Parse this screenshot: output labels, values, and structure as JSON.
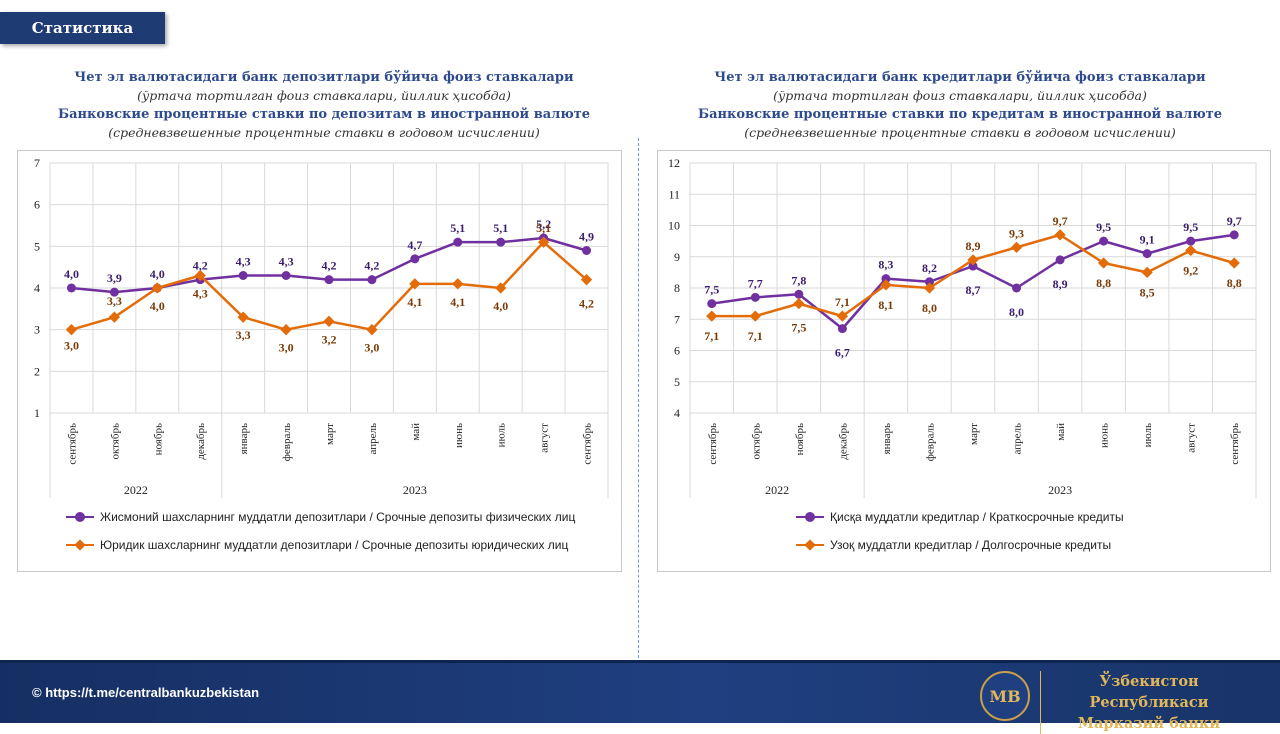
{
  "header": {
    "section_label": "Статистика"
  },
  "left": {
    "title_uz": "Чет эл валютасидаги банк депозитлари бўйича фоиз ставкалари",
    "subtitle_uz": "(ўртача тортилган фоиз ставкалари, йиллик ҳисобда)",
    "title_ru": "Банковские процентные ставки по депозитам в иностранной валюте",
    "subtitle_ru": "(средневзвешенные процентные ставки в годовом исчислении)"
  },
  "right": {
    "title_uz": "Чет эл валютасидаги банк кредитлари бўйича фоиз ставкалари",
    "subtitle_uz": "(ўртача тортилган фоиз ставкалари, йиллик ҳисобда)",
    "title_ru": "Банковские процентные ставки по кредитам в иностранной валюте",
    "subtitle_ru": "(средневзвешенные процентные ставки в годовом исчислении)"
  },
  "chart_data": [
    {
      "type": "line",
      "categories": [
        "сентябрь",
        "октябрь",
        "ноябрь",
        "декабрь",
        "январь",
        "февраль",
        "март",
        "апрель",
        "май",
        "июнь",
        "июль",
        "август",
        "сентябрь"
      ],
      "year_groups": [
        {
          "label": "2022",
          "start": 0,
          "end": 3
        },
        {
          "label": "2023",
          "start": 4,
          "end": 12
        }
      ],
      "ylim": [
        1,
        7
      ],
      "yticks": [
        1,
        2,
        3,
        4,
        5,
        6,
        7
      ],
      "grid": true,
      "legend_position": "bottom",
      "series": [
        {
          "name": "Жисмоний шахсларнинг муддатли депозитлари / Срочные депозиты физических лиц",
          "color": "#7030a0",
          "marker": "circle",
          "values": [
            4.0,
            3.9,
            4.0,
            4.2,
            4.3,
            4.3,
            4.2,
            4.2,
            4.7,
            5.1,
            5.1,
            5.2,
            4.9
          ],
          "labels": [
            "4,0",
            "3,9",
            "4,0",
            "4,2",
            "4,3",
            "4,3",
            "4,2",
            "4,2",
            "4,7",
            "5,1",
            "5,1",
            "5,2",
            "4,9"
          ]
        },
        {
          "name": "Юридик шахсларнинг муддатли депозитлари / Срочные депозиты юридических лиц",
          "color": "#e36c09",
          "marker": "diamond",
          "values": [
            3.0,
            3.3,
            4.0,
            4.3,
            3.3,
            3.0,
            3.2,
            3.0,
            4.1,
            4.1,
            4.0,
            5.1,
            4.2
          ],
          "labels": [
            "3,0",
            "3,3",
            "4,0",
            "4,3",
            "3,3",
            "3,0",
            "3,2",
            "3,0",
            "4,1",
            "4,1",
            "4,0",
            "5,1",
            "4,2"
          ]
        }
      ]
    },
    {
      "type": "line",
      "categories": [
        "сентябрь",
        "октябрь",
        "ноябрь",
        "декабрь",
        "январь",
        "февраль",
        "март",
        "апрель",
        "май",
        "июнь",
        "июль",
        "август",
        "сентябрь"
      ],
      "year_groups": [
        {
          "label": "2022",
          "start": 0,
          "end": 3
        },
        {
          "label": "2023",
          "start": 4,
          "end": 12
        }
      ],
      "ylim": [
        4,
        12
      ],
      "yticks": [
        4,
        5,
        6,
        7,
        8,
        9,
        10,
        11,
        12
      ],
      "grid": true,
      "legend_position": "bottom",
      "series": [
        {
          "name": "Қисқа муддатли кредитлар / Краткосрочные кредиты",
          "color": "#7030a0",
          "marker": "circle",
          "values": [
            7.5,
            7.7,
            7.8,
            6.7,
            8.3,
            8.2,
            8.7,
            8.0,
            8.9,
            9.5,
            9.1,
            9.5,
            9.7
          ],
          "labels": [
            "7,5",
            "7,7",
            "7,8",
            "6,7",
            "8,3",
            "8,2",
            "8,7",
            "8,0",
            "8,9",
            "9,5",
            "9,1",
            "9,5",
            "9,7"
          ]
        },
        {
          "name": "Узоқ муддатли кредитлар / Долгосрочные кредиты",
          "color": "#e36c09",
          "marker": "diamond",
          "values": [
            7.1,
            7.1,
            7.5,
            7.1,
            8.1,
            8.0,
            8.9,
            9.3,
            9.7,
            8.8,
            8.5,
            9.2,
            8.8
          ],
          "labels": [
            "7,1",
            "7,1",
            "7,5",
            "7,1",
            "8,1",
            "8,0",
            "8,9",
            "9,3",
            "9,7",
            "8,8",
            "8,5",
            "9,2",
            "8,8"
          ]
        }
      ]
    }
  ],
  "footer": {
    "link": "© https://t.me/centralbankuzbekistan",
    "logo_text": "MB",
    "bank_line1": "Ўзбекистон Республикаси",
    "bank_line2": "Марказий банки"
  }
}
